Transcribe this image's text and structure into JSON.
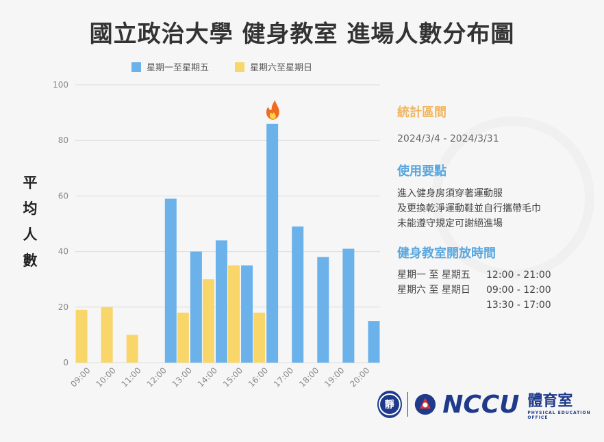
{
  "title": "國立政治大學  健身教室 進場人數分布圖",
  "chart_data": {
    "type": "bar",
    "categories": [
      "09:00",
      "10:00",
      "11:00",
      "12:00",
      "13:00",
      "14:00",
      "15:00",
      "16:00",
      "17:00",
      "18:00",
      "19:00",
      "20:00"
    ],
    "series": [
      {
        "name": "星期一至星期五",
        "color": "#6cb2ea",
        "values": [
          null,
          null,
          null,
          59,
          40,
          44,
          35,
          86,
          49,
          38,
          41,
          15
        ]
      },
      {
        "name": "星期六至星期日",
        "color": "#f9d66a",
        "values": [
          19,
          20,
          10,
          null,
          18,
          30,
          35,
          18,
          null,
          null,
          null,
          null
        ]
      }
    ],
    "ylabel": "平均人數",
    "ylim": [
      0,
      100
    ],
    "yticks": [
      0,
      20,
      40,
      60,
      80,
      100
    ],
    "annotation": {
      "category": "16:00",
      "icon": "fire-icon"
    },
    "grid": true,
    "legend_position": "top"
  },
  "info": {
    "period_heading": "統計區間",
    "period_value": "2024/3/4 - 2024/3/31",
    "rules_heading": "使用要點",
    "rules": [
      "進入健身房須穿著運動服",
      "及更換乾淨運動鞋並自行攜帶毛巾",
      "未能遵守規定可謝絕進場"
    ],
    "hours_heading": "健身教室開放時間",
    "hours": [
      {
        "days": "星期一 至 星期五",
        "time": "12:00 - 21:00"
      },
      {
        "days": "星期六 至 星期日",
        "time": "09:00 - 12:00"
      },
      {
        "days": "",
        "time": "13:30 - 17:00"
      }
    ]
  },
  "logo": {
    "seal_char": "靜",
    "brand": "NCCU",
    "office_zh": "體育室",
    "office_en": "PHYSICAL EDUCATION OFFICE"
  }
}
